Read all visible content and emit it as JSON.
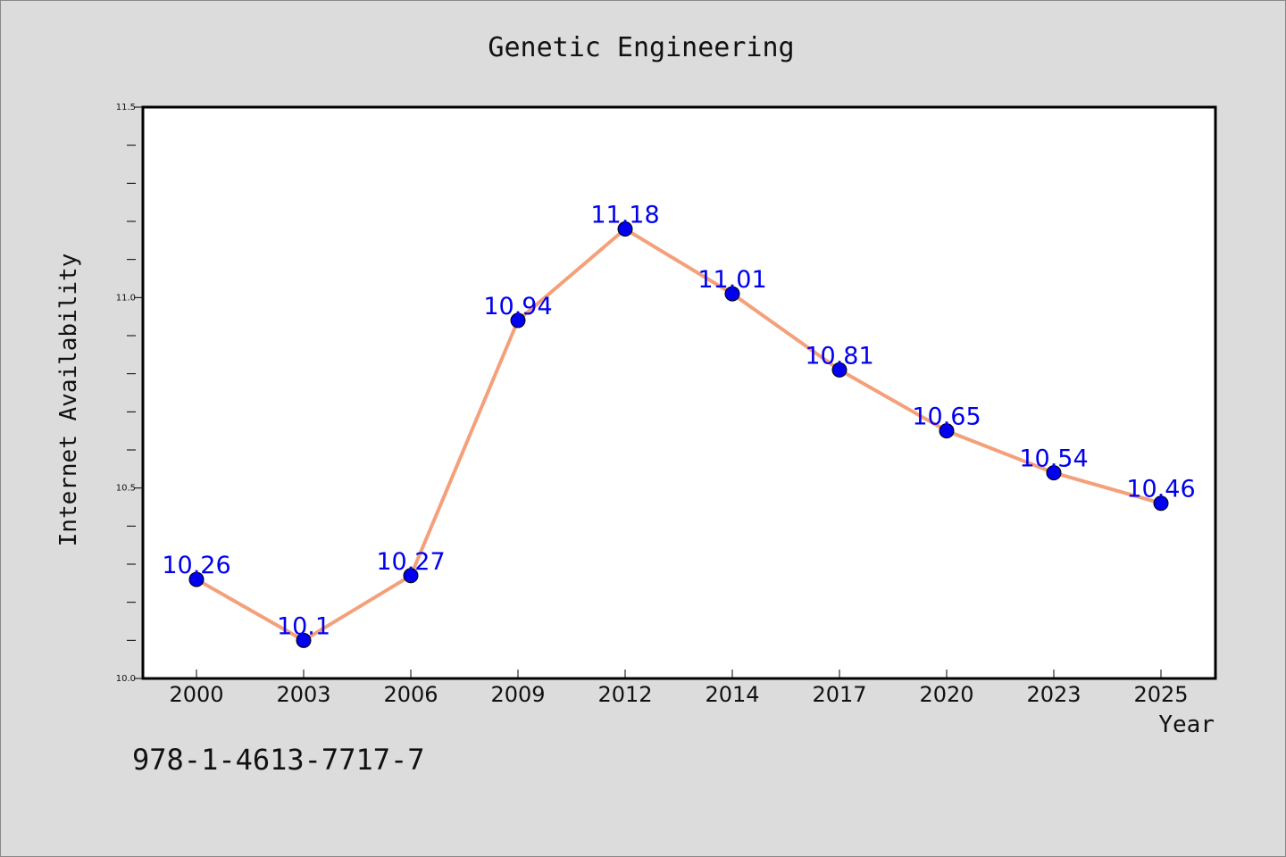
{
  "chart_data": {
    "type": "line",
    "title": "Genetic Engineering",
    "xlabel": "Year",
    "ylabel": "Internet Availability",
    "categories": [
      "2000",
      "2003",
      "2006",
      "2009",
      "2012",
      "2014",
      "2017",
      "2020",
      "2023",
      "2025"
    ],
    "series": [
      {
        "values": [
          10.26,
          10.1,
          10.27,
          10.94,
          11.18,
          11.01,
          10.81,
          10.65,
          10.54,
          10.46
        ],
        "labels": [
          "10.26",
          "10.1",
          "10.27",
          "10.94",
          "11.18",
          "11.01",
          "10.81",
          "10.65",
          "10.54",
          "10.46"
        ]
      }
    ],
    "ylim": [
      10.0,
      11.5
    ],
    "yticks": [
      "10.0",
      "10.5",
      "11.0",
      "11.5"
    ],
    "grid": false,
    "line_color": "#f4a07a",
    "marker_color": "#0000ee",
    "label_color": "#0000ee"
  },
  "footer": {
    "isbn": "978-1-4613-7717-7"
  }
}
